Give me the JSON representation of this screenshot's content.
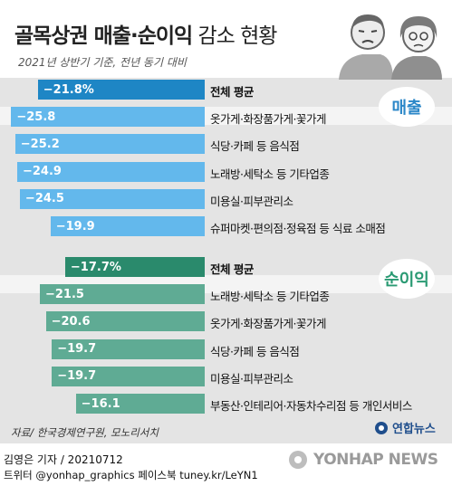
{
  "title": {
    "bold": "골목상권 매출·순이익",
    "light": " 감소 현황"
  },
  "subtitle": "2021년 상반기 기준, 전년 동기 대비",
  "chart_data": [
    {
      "type": "bar",
      "name": "매출",
      "categories": [
        "전체 평균",
        "옷가게·화장품가게·꽃가게",
        "식당·카페 등 음식점",
        "노래방·세탁소 등 기타업종",
        "미용실·피부관리소",
        "슈퍼마켓·편의점·정육점 등 식료 소매점"
      ],
      "values": [
        -21.8,
        -25.8,
        -25.2,
        -24.9,
        -24.5,
        -19.9
      ],
      "value_labels": [
        "−21.8%",
        "−25.8",
        "−25.2",
        "−24.9",
        "−24.5",
        "−19.9"
      ],
      "colors": {
        "average": "#1e86c5",
        "bar": "#63b8ec",
        "badge_text": "#2b87c8"
      }
    },
    {
      "type": "bar",
      "name": "순이익",
      "categories": [
        "전체 평균",
        "노래방·세탁소 등 기타업종",
        "옷가게·화장품가게·꽃가게",
        "식당·카페 등 음식점",
        "미용실·피부관리소",
        "부동산·인테리어·자동차수리점 등 개인서비스"
      ],
      "values": [
        -17.7,
        -21.5,
        -20.6,
        -19.7,
        -19.7,
        -16.1
      ],
      "value_labels": [
        "−17.7%",
        "−21.5",
        "−20.6",
        "−19.7",
        "−19.7",
        "−16.1"
      ],
      "colors": {
        "average": "#2a8a6c",
        "bar": "#5fab94",
        "badge_text": "#2a9a73"
      }
    }
  ],
  "source": "자료/ 한국경제연구원, 모노리서치",
  "logo_small": "연합뉴스",
  "credit": "김영은 기자 / 20210712",
  "twitter": "트위터 @yonhap_graphics  페이스북 tuney.kr/LeYN1",
  "yonhap": "YONHAP NEWS"
}
